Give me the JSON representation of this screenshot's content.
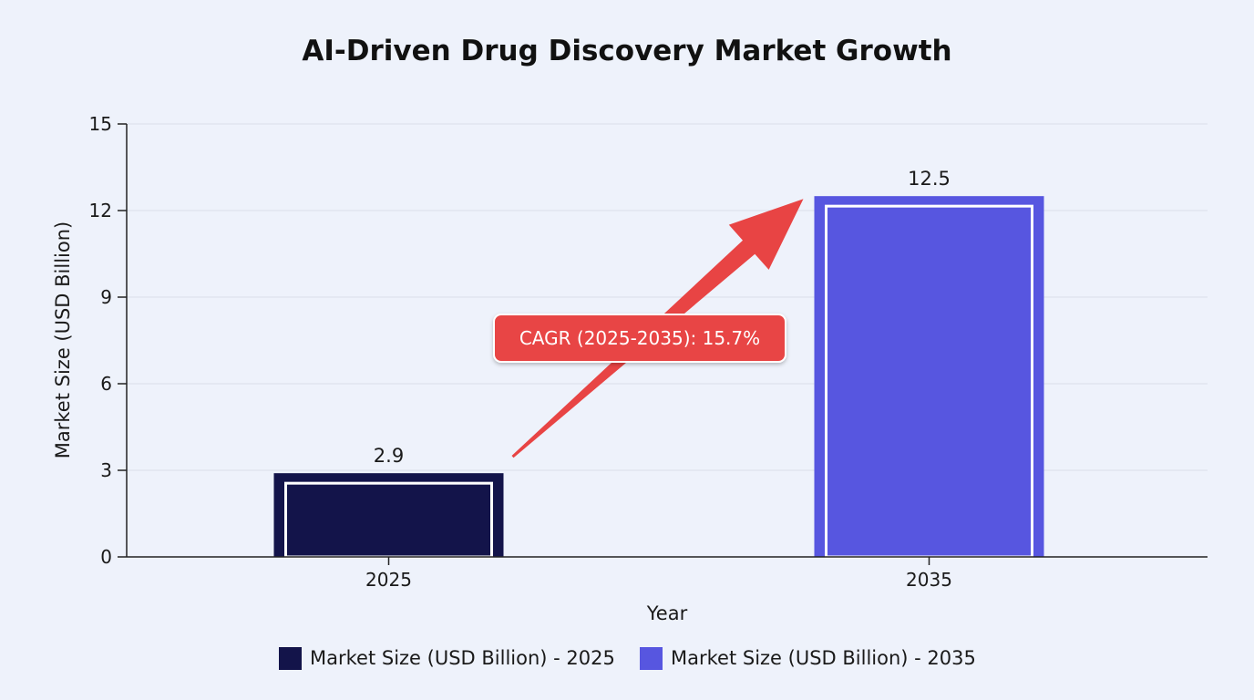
{
  "chart_data": {
    "type": "bar",
    "title": "AI-Driven Drug Discovery Market Growth",
    "xlabel": "Year",
    "ylabel": "Market Size (USD Billion)",
    "categories": [
      "2025",
      "2035"
    ],
    "values": [
      2.9,
      12.5
    ],
    "data_labels": [
      "2.9",
      "12.5"
    ],
    "ylim": [
      0,
      15
    ],
    "yticks": [
      0,
      3,
      6,
      9,
      12,
      15
    ],
    "colors": [
      "#13144a",
      "#5756e0"
    ],
    "grid": true,
    "legend_position": "bottom",
    "legend": [
      {
        "label": "Market Size (USD Billion) - 2025",
        "color": "#13144a"
      },
      {
        "label": "Market Size (USD Billion) - 2035",
        "color": "#5756e0"
      }
    ],
    "annotation": {
      "text": "CAGR (2025-2035): 15.7%",
      "color": "#e84444",
      "from_category": "2025",
      "to_category": "2035"
    }
  }
}
